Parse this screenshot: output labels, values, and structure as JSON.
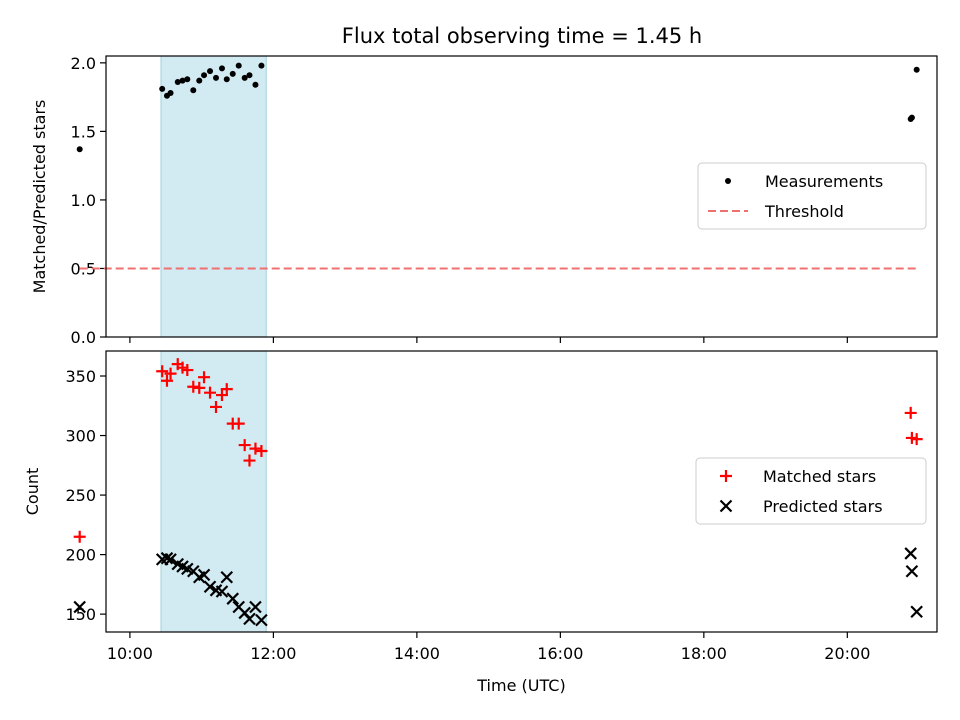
{
  "title": "Flux total observing time = 1.45 h",
  "chart_data": [
    {
      "type": "scatter",
      "ylabel": "Matched/Predicted stars",
      "xlabel": "",
      "xlim": [
        "09:40",
        "21:15"
      ],
      "ylim": [
        0,
        2.05
      ],
      "yticks": [
        "0.0",
        "0.5",
        "1.0",
        "1.5",
        "2.0"
      ],
      "xticks": [
        "10:00",
        "12:00",
        "14:00",
        "16:00",
        "18:00",
        "20:00"
      ],
      "highlight_band": {
        "start": "10:26",
        "end": "11:54",
        "color": "#add8e6"
      },
      "legend_position": "center-right",
      "series": [
        {
          "name": "Measurements",
          "marker": "dot",
          "color": "#000000",
          "points": [
            [
              "09:18",
              1.37
            ],
            [
              "10:27",
              1.81
            ],
            [
              "10:31",
              1.76
            ],
            [
              "10:34",
              1.78
            ],
            [
              "10:40",
              1.86
            ],
            [
              "10:44",
              1.87
            ],
            [
              "10:48",
              1.88
            ],
            [
              "10:53",
              1.8
            ],
            [
              "10:58",
              1.87
            ],
            [
              "11:02",
              1.91
            ],
            [
              "11:07",
              1.94
            ],
            [
              "11:12",
              1.89
            ],
            [
              "11:17",
              1.96
            ],
            [
              "11:21",
              1.88
            ],
            [
              "11:26",
              1.92
            ],
            [
              "11:31",
              1.98
            ],
            [
              "11:36",
              1.89
            ],
            [
              "11:40",
              1.91
            ],
            [
              "11:45",
              1.84
            ],
            [
              "11:50",
              1.98
            ],
            [
              "20:53",
              1.59
            ],
            [
              "20:54",
              1.6
            ],
            [
              "20:58",
              1.95
            ]
          ]
        },
        {
          "name": "Threshold",
          "marker": "dashed-line",
          "color": "#f07070",
          "points": [
            [
              "09:18",
              0.5
            ],
            [
              "20:58",
              0.5
            ]
          ]
        }
      ]
    },
    {
      "type": "scatter",
      "ylabel": "Count",
      "xlabel": "Time (UTC)",
      "xlim": [
        "09:40",
        "21:15"
      ],
      "ylim": [
        135,
        371
      ],
      "yticks": [
        "150",
        "200",
        "250",
        "300",
        "350"
      ],
      "xticks": [
        "10:00",
        "12:00",
        "14:00",
        "16:00",
        "18:00",
        "20:00"
      ],
      "highlight_band": {
        "start": "10:26",
        "end": "11:54",
        "color": "#add8e6"
      },
      "legend_position": "center-right",
      "series": [
        {
          "name": "Matched stars",
          "marker": "plus",
          "color": "#ff0000",
          "points": [
            [
              "09:18",
              215
            ],
            [
              "10:27",
              354
            ],
            [
              "10:31",
              346
            ],
            [
              "10:34",
              352
            ],
            [
              "10:40",
              360
            ],
            [
              "10:44",
              357
            ],
            [
              "10:48",
              355
            ],
            [
              "10:53",
              341
            ],
            [
              "10:58",
              340
            ],
            [
              "11:02",
              349
            ],
            [
              "11:07",
              336
            ],
            [
              "11:12",
              324
            ],
            [
              "11:17",
              334
            ],
            [
              "11:21",
              339
            ],
            [
              "11:26",
              310
            ],
            [
              "11:31",
              310
            ],
            [
              "11:36",
              292
            ],
            [
              "11:40",
              279
            ],
            [
              "11:45",
              289
            ],
            [
              "11:50",
              287
            ],
            [
              "20:53",
              319
            ],
            [
              "20:54",
              298
            ],
            [
              "20:58",
              297
            ]
          ]
        },
        {
          "name": "Predicted stars",
          "marker": "x",
          "color": "#000000",
          "points": [
            [
              "09:18",
              156
            ],
            [
              "10:27",
              196
            ],
            [
              "10:31",
              197
            ],
            [
              "10:34",
              196
            ],
            [
              "10:40",
              192
            ],
            [
              "10:44",
              190
            ],
            [
              "10:48",
              188
            ],
            [
              "10:53",
              186
            ],
            [
              "10:58",
              181
            ],
            [
              "11:02",
              183
            ],
            [
              "11:07",
              173
            ],
            [
              "11:12",
              170
            ],
            [
              "11:17",
              169
            ],
            [
              "11:21",
              181
            ],
            [
              "11:26",
              163
            ],
            [
              "11:31",
              156
            ],
            [
              "11:36",
              151
            ],
            [
              "11:40",
              146
            ],
            [
              "11:45",
              156
            ],
            [
              "11:50",
              145
            ],
            [
              "20:53",
              201
            ],
            [
              "20:54",
              186
            ],
            [
              "20:58",
              152
            ]
          ]
        }
      ]
    }
  ]
}
